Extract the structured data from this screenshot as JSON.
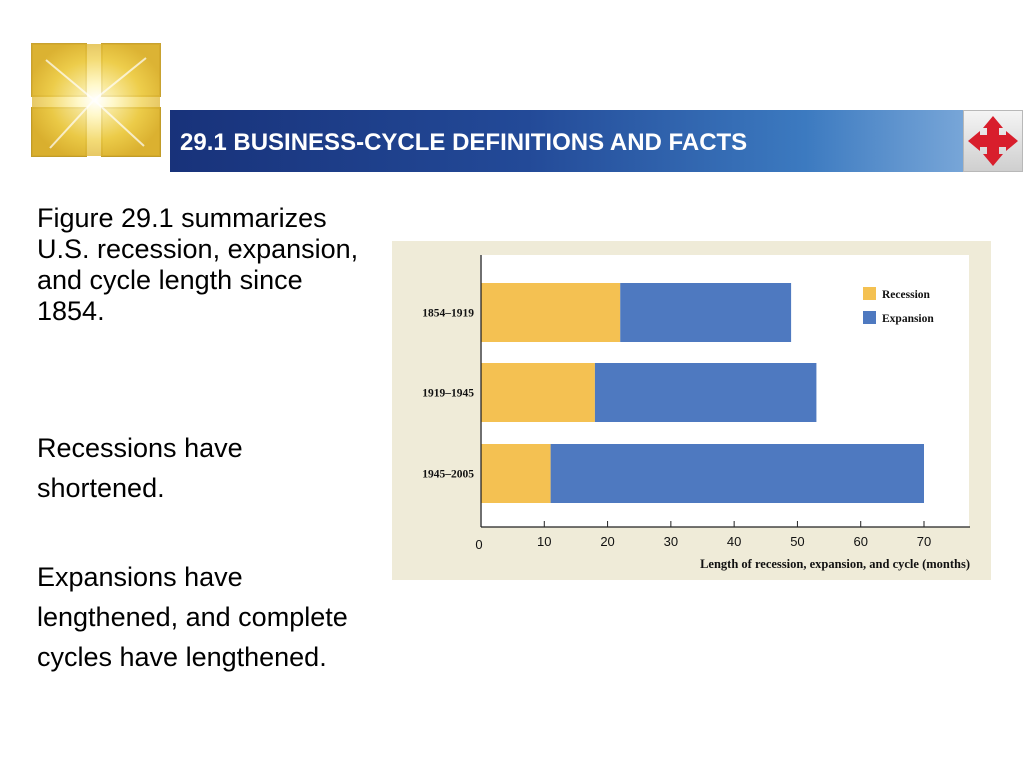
{
  "slide": {
    "title": "29.1 BUSINESS-CYCLE DEFINITIONS AND FACTS",
    "paragraphs": [
      "Figure 29.1 summarizes U.S. recession, expansion, and cycle length since 1854.",
      "Recessions have shortened.",
      "Expansions have lengthened, and complete cycles have lengthened."
    ]
  },
  "icons": {
    "logo": "sunburst-squares-logo",
    "nav": "four-way-arrows-icon"
  },
  "colors": {
    "title_bar": "#234a98",
    "recession": "#f4c152",
    "expansion": "#4e79c0",
    "chart_bg": "#efebd8"
  },
  "chart_data": {
    "type": "bar",
    "orientation": "horizontal",
    "stacked": true,
    "categories": [
      "1854–1919",
      "1919–1945",
      "1945–2005"
    ],
    "series": [
      {
        "name": "Recession",
        "values": [
          22,
          18,
          11
        ],
        "color": "#f4c152"
      },
      {
        "name": "Expansion",
        "values": [
          27,
          35,
          59
        ],
        "color": "#4e79c0"
      }
    ],
    "xlabel": "Length of recession, expansion, and cycle (months)",
    "ylabel": "",
    "xlim": [
      0,
      70
    ],
    "xticks": [
      0,
      10,
      20,
      30,
      40,
      50,
      60,
      70
    ],
    "legend_position": "top-right",
    "grid": false
  }
}
